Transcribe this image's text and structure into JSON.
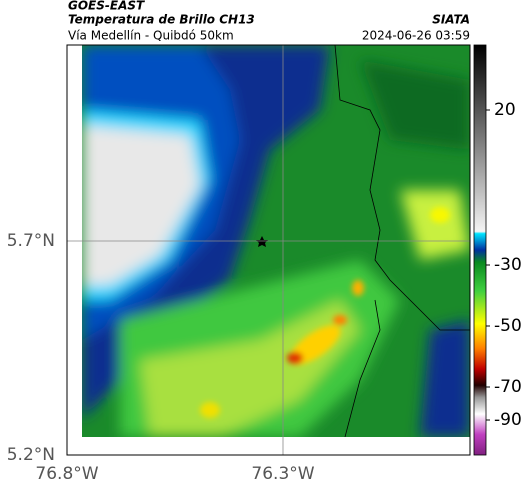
{
  "header": {
    "title": "GOES-EAST",
    "subtitle": "Temperatura de Brillo CH13",
    "source": "SIATA",
    "location": "Vía Medellín - Quibdó 50km",
    "datetime": "2024-06-26 03:59"
  },
  "map": {
    "lat_ticks": [
      "5.7°N",
      "5.2°N"
    ],
    "lon_ticks": [
      "76.8°W",
      "76.3°W"
    ]
  },
  "colorbar": {
    "ticks": [
      20,
      -30,
      -50,
      -70,
      -90
    ]
  }
}
